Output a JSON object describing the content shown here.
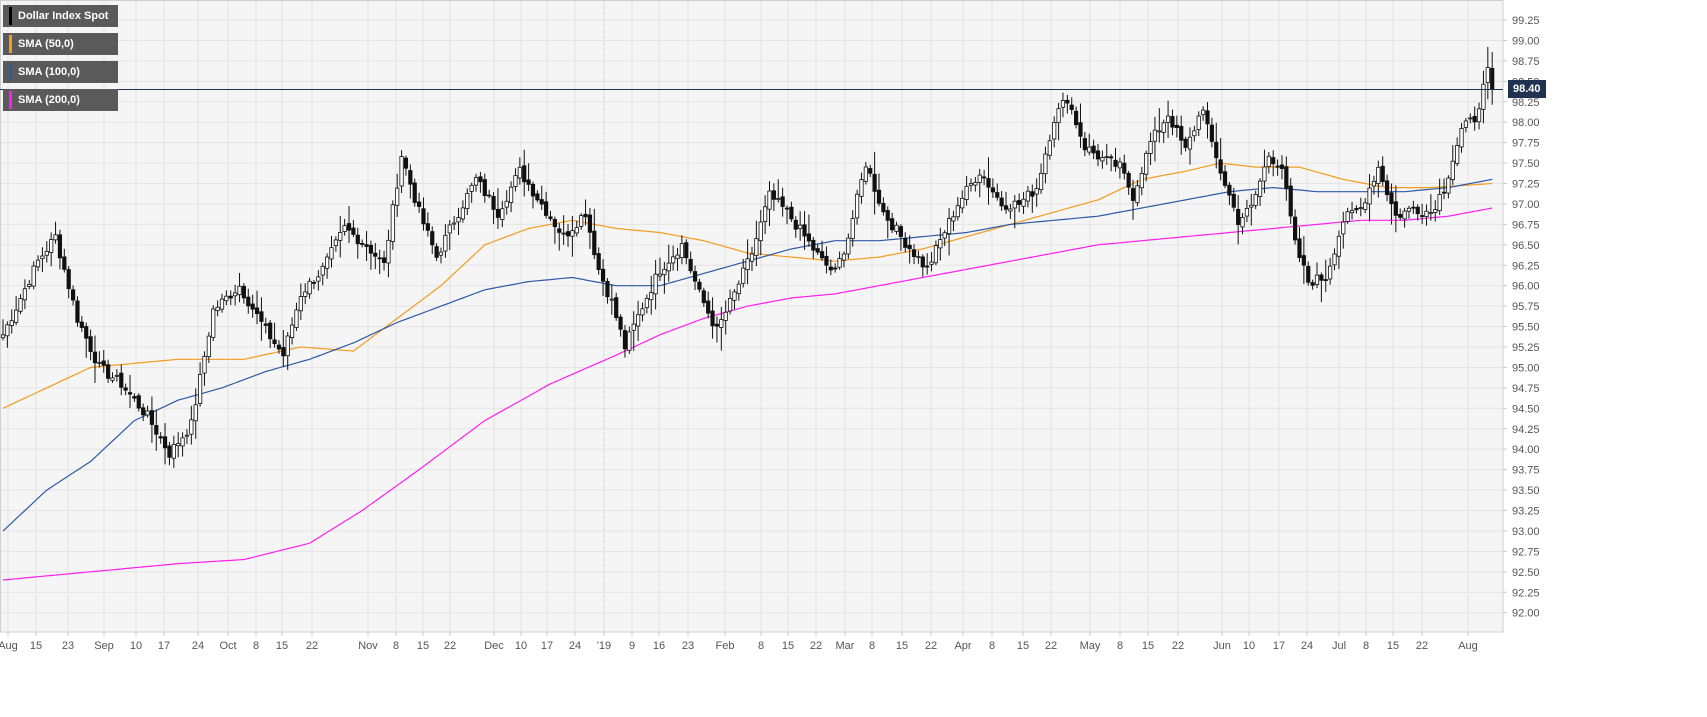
{
  "chart_data": {
    "type": "candlestick",
    "instrument": "Dollar Index Spot",
    "x_tick_labels": [
      "Aug",
      "15",
      "23",
      "Sep",
      "10",
      "17",
      "24",
      "Oct",
      "8",
      "15",
      "22",
      "Nov",
      "8",
      "15",
      "22",
      "Dec",
      "10",
      "17",
      "24",
      "'19",
      "9",
      "16",
      "23",
      "Feb",
      "8",
      "15",
      "22",
      "Mar",
      "8",
      "15",
      "22",
      "Apr",
      "8",
      "15",
      "22",
      "May",
      "8",
      "15",
      "22",
      "Jun",
      "10",
      "17",
      "24",
      "Jul",
      "8",
      "15",
      "22",
      "Aug"
    ],
    "y_ticks": [
      "92.00",
      "92.25",
      "92.50",
      "92.75",
      "93.00",
      "93.25",
      "93.50",
      "93.75",
      "94.00",
      "94.25",
      "94.50",
      "94.75",
      "95.00",
      "95.25",
      "95.50",
      "95.75",
      "96.00",
      "96.25",
      "96.50",
      "96.75",
      "97.00",
      "97.25",
      "97.50",
      "97.75",
      "98.00",
      "98.25",
      "98.50",
      "98.75",
      "99.00",
      "99.25"
    ],
    "ylim": [
      91.75,
      99.45
    ],
    "last_price": "98.40",
    "price_anchors": [
      [
        0,
        95.4
      ],
      [
        8,
        96.3
      ],
      [
        12,
        96.6
      ],
      [
        17,
        95.6
      ],
      [
        22,
        95.0
      ],
      [
        27,
        94.8
      ],
      [
        33,
        94.4
      ],
      [
        38,
        93.95
      ],
      [
        43,
        94.3
      ],
      [
        48,
        95.7
      ],
      [
        54,
        96.0
      ],
      [
        60,
        95.45
      ],
      [
        64,
        95.15
      ],
      [
        68,
        95.9
      ],
      [
        73,
        96.2
      ],
      [
        78,
        96.7
      ],
      [
        83,
        96.5
      ],
      [
        87,
        96.25
      ],
      [
        91,
        97.6
      ],
      [
        95,
        96.9
      ],
      [
        99,
        96.35
      ],
      [
        103,
        96.8
      ],
      [
        108,
        97.3
      ],
      [
        113,
        96.9
      ],
      [
        118,
        97.4
      ],
      [
        123,
        97.0
      ],
      [
        128,
        96.6
      ],
      [
        133,
        96.9
      ],
      [
        136,
        96.2
      ],
      [
        139,
        95.8
      ],
      [
        142,
        95.25
      ],
      [
        146,
        95.75
      ],
      [
        150,
        96.2
      ],
      [
        155,
        96.5
      ],
      [
        159,
        95.9
      ],
      [
        163,
        95.45
      ],
      [
        167,
        95.9
      ],
      [
        171,
        96.4
      ],
      [
        175,
        97.1
      ],
      [
        179,
        96.9
      ],
      [
        183,
        96.6
      ],
      [
        187,
        96.3
      ],
      [
        190,
        96.15
      ],
      [
        193,
        96.6
      ],
      [
        197,
        97.5
      ],
      [
        201,
        96.9
      ],
      [
        205,
        96.6
      ],
      [
        208,
        96.4
      ],
      [
        211,
        96.2
      ],
      [
        214,
        96.55
      ],
      [
        218,
        97.0
      ],
      [
        223,
        97.4
      ],
      [
        228,
        97.0
      ],
      [
        232,
        97.0
      ],
      [
        236,
        97.2
      ],
      [
        240,
        98.05
      ],
      [
        243,
        98.3
      ],
      [
        247,
        97.7
      ],
      [
        251,
        97.55
      ],
      [
        255,
        97.45
      ],
      [
        258,
        97.1
      ],
      [
        262,
        97.75
      ],
      [
        266,
        98.1
      ],
      [
        270,
        97.65
      ],
      [
        274,
        98.2
      ],
      [
        276,
        97.7
      ],
      [
        279,
        97.25
      ],
      [
        282,
        96.8
      ],
      [
        285,
        96.95
      ],
      [
        289,
        97.6
      ],
      [
        292,
        97.45
      ],
      [
        295,
        96.5
      ],
      [
        298,
        96.05
      ],
      [
        302,
        96.1
      ],
      [
        306,
        96.8
      ],
      [
        310,
        96.95
      ],
      [
        314,
        97.45
      ],
      [
        318,
        96.85
      ],
      [
        322,
        96.95
      ],
      [
        326,
        96.9
      ],
      [
        329,
        97.2
      ],
      [
        333,
        97.9
      ],
      [
        336,
        98.05
      ],
      [
        339,
        98.6
      ],
      [
        340,
        98.4
      ]
    ],
    "series": [
      {
        "name": "SMA (50,0)",
        "color": "#f39c1e",
        "points": [
          [
            0,
            94.5
          ],
          [
            20,
            95.0
          ],
          [
            40,
            95.1
          ],
          [
            55,
            95.1
          ],
          [
            68,
            95.25
          ],
          [
            80,
            95.2
          ],
          [
            90,
            95.6
          ],
          [
            100,
            96.0
          ],
          [
            110,
            96.5
          ],
          [
            120,
            96.7
          ],
          [
            130,
            96.8
          ],
          [
            140,
            96.7
          ],
          [
            150,
            96.65
          ],
          [
            160,
            96.55
          ],
          [
            170,
            96.4
          ],
          [
            180,
            96.35
          ],
          [
            190,
            96.3
          ],
          [
            200,
            96.35
          ],
          [
            210,
            96.45
          ],
          [
            220,
            96.6
          ],
          [
            230,
            96.75
          ],
          [
            240,
            96.9
          ],
          [
            250,
            97.05
          ],
          [
            260,
            97.3
          ],
          [
            270,
            97.4
          ],
          [
            278,
            97.5
          ],
          [
            286,
            97.45
          ],
          [
            296,
            97.45
          ],
          [
            306,
            97.3
          ],
          [
            316,
            97.2
          ],
          [
            326,
            97.2
          ],
          [
            340,
            97.25
          ]
        ]
      },
      {
        "name": "SMA (100,0)",
        "color": "#2e5aa7",
        "points": [
          [
            0,
            93.0
          ],
          [
            10,
            93.5
          ],
          [
            20,
            93.85
          ],
          [
            30,
            94.35
          ],
          [
            40,
            94.6
          ],
          [
            50,
            94.75
          ],
          [
            60,
            94.95
          ],
          [
            70,
            95.1
          ],
          [
            80,
            95.3
          ],
          [
            90,
            95.55
          ],
          [
            100,
            95.75
          ],
          [
            110,
            95.95
          ],
          [
            120,
            96.05
          ],
          [
            130,
            96.1
          ],
          [
            140,
            96.0
          ],
          [
            150,
            96.0
          ],
          [
            160,
            96.15
          ],
          [
            170,
            96.3
          ],
          [
            180,
            96.45
          ],
          [
            190,
            96.55
          ],
          [
            200,
            96.55
          ],
          [
            210,
            96.6
          ],
          [
            220,
            96.65
          ],
          [
            230,
            96.75
          ],
          [
            240,
            96.8
          ],
          [
            250,
            96.85
          ],
          [
            260,
            96.95
          ],
          [
            270,
            97.05
          ],
          [
            280,
            97.15
          ],
          [
            290,
            97.2
          ],
          [
            300,
            97.15
          ],
          [
            310,
            97.15
          ],
          [
            320,
            97.15
          ],
          [
            330,
            97.2
          ],
          [
            340,
            97.3
          ]
        ]
      },
      {
        "name": "SMA (200,0)",
        "color": "#ff1ef2",
        "points": [
          [
            0,
            92.4
          ],
          [
            20,
            92.5
          ],
          [
            40,
            92.6
          ],
          [
            55,
            92.65
          ],
          [
            70,
            92.85
          ],
          [
            82,
            93.25
          ],
          [
            95,
            93.75
          ],
          [
            110,
            94.35
          ],
          [
            125,
            94.8
          ],
          [
            140,
            95.15
          ],
          [
            150,
            95.4
          ],
          [
            160,
            95.6
          ],
          [
            170,
            95.75
          ],
          [
            180,
            95.85
          ],
          [
            190,
            95.9
          ],
          [
            200,
            96.0
          ],
          [
            210,
            96.1
          ],
          [
            220,
            96.2
          ],
          [
            230,
            96.3
          ],
          [
            240,
            96.4
          ],
          [
            250,
            96.5
          ],
          [
            260,
            96.55
          ],
          [
            270,
            96.6
          ],
          [
            280,
            96.65
          ],
          [
            290,
            96.7
          ],
          [
            300,
            96.75
          ],
          [
            310,
            96.8
          ],
          [
            320,
            96.8
          ],
          [
            330,
            96.85
          ],
          [
            340,
            96.95
          ]
        ]
      }
    ],
    "grid": true
  },
  "colors": {
    "background": "#f5f5f5",
    "grid": "#e4e4e4",
    "axis": "#c8c8c8",
    "candle_up": "#ffffff",
    "candle_down": "#111111",
    "last_price_line": "#1f3250",
    "legend_bg": "#5a5a5a"
  },
  "legend": [
    {
      "label": "Dollar Index Spot",
      "color": "#000000"
    },
    {
      "label": "SMA (50,0)",
      "color": "#f39c1e"
    },
    {
      "label": "SMA (100,0)",
      "color": "#2e5aa7"
    },
    {
      "label": "SMA (200,0)",
      "color": "#ff1ef2"
    }
  ]
}
